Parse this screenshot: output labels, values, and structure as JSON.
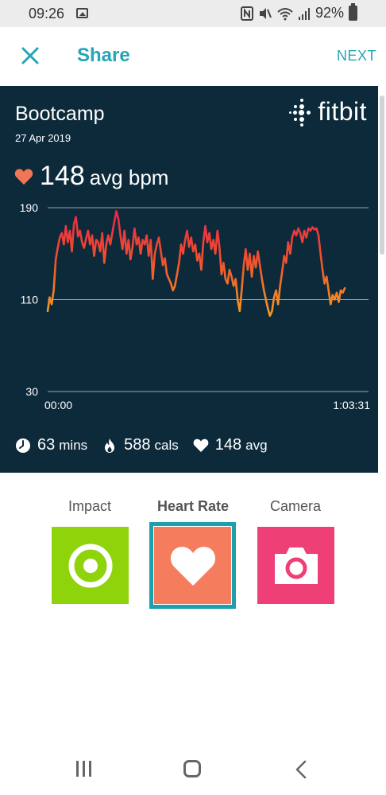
{
  "status_bar": {
    "time": "09:26",
    "battery": "92%"
  },
  "header": {
    "title": "Share",
    "next_label": "NEXT"
  },
  "card": {
    "workout_title": "Bootcamp",
    "date": "27 Apr 2019",
    "brand": "fitbit",
    "avg_bpm_value": "148",
    "avg_bpm_unit": "avg bpm",
    "stats": {
      "duration_value": "63",
      "duration_unit": "mins",
      "calories_value": "588",
      "calories_unit": "cals",
      "avg_value": "148",
      "avg_unit": "avg"
    },
    "colors": {
      "background": "#0d2a3b",
      "heart": "#f07658",
      "line_high": "#e8244a",
      "line_low": "#f5a623"
    }
  },
  "chart_data": {
    "type": "line",
    "y_ticks": [
      "190",
      "110",
      "30"
    ],
    "x_ticks": [
      "00:00",
      "1:03:31"
    ],
    "ylim": [
      30,
      190
    ],
    "xlim_minutes": [
      0,
      63.5
    ],
    "series": [
      {
        "values": [
          [
            0,
            100
          ],
          [
            0.4,
            112
          ],
          [
            0.8,
            106
          ],
          [
            1.2,
            118
          ],
          [
            1.6,
            145
          ],
          [
            2.0,
            155
          ],
          [
            2.4,
            164
          ],
          [
            2.8,
            168
          ],
          [
            3.2,
            158
          ],
          [
            3.6,
            174
          ],
          [
            4.0,
            160
          ],
          [
            4.4,
            170
          ],
          [
            4.8,
            152
          ],
          [
            5.2,
            176
          ],
          [
            5.6,
            182
          ],
          [
            6.0,
            165
          ],
          [
            6.4,
            170
          ],
          [
            6.8,
            160
          ],
          [
            7.2,
            155
          ],
          [
            7.6,
            163
          ],
          [
            8.0,
            170
          ],
          [
            8.4,
            158
          ],
          [
            8.8,
            166
          ],
          [
            9.2,
            148
          ],
          [
            9.6,
            162
          ],
          [
            10.0,
            160
          ],
          [
            10.4,
            152
          ],
          [
            10.8,
            168
          ],
          [
            11.2,
            142
          ],
          [
            11.6,
            158
          ],
          [
            12.0,
            166
          ],
          [
            12.4,
            158
          ],
          [
            12.8,
            168
          ],
          [
            13.2,
            178
          ],
          [
            13.6,
            187
          ],
          [
            14.0,
            180
          ],
          [
            14.4,
            166
          ],
          [
            14.8,
            154
          ],
          [
            15.2,
            170
          ],
          [
            15.6,
            150
          ],
          [
            16.0,
            162
          ],
          [
            16.4,
            145
          ],
          [
            16.8,
            156
          ],
          [
            17.2,
            172
          ],
          [
            17.6,
            158
          ],
          [
            18.0,
            164
          ],
          [
            18.4,
            150
          ],
          [
            18.8,
            162
          ],
          [
            19.2,
            158
          ],
          [
            19.6,
            166
          ],
          [
            20.0,
            148
          ],
          [
            20.4,
            162
          ],
          [
            20.8,
            128
          ],
          [
            21.2,
            150
          ],
          [
            21.6,
            158
          ],
          [
            22.0,
            164
          ],
          [
            22.4,
            152
          ],
          [
            22.8,
            140
          ],
          [
            23.2,
            146
          ],
          [
            23.6,
            132
          ],
          [
            24.0,
            128
          ],
          [
            24.4,
            124
          ],
          [
            24.8,
            118
          ],
          [
            25.2,
            122
          ],
          [
            25.6,
            132
          ],
          [
            26.0,
            142
          ],
          [
            26.4,
            158
          ],
          [
            26.8,
            150
          ],
          [
            27.2,
            162
          ],
          [
            27.6,
            170
          ],
          [
            28.0,
            156
          ],
          [
            28.4,
            164
          ],
          [
            28.8,
            152
          ],
          [
            29.2,
            158
          ],
          [
            29.6,
            144
          ],
          [
            30.0,
            150
          ],
          [
            30.4,
            136
          ],
          [
            30.8,
            160
          ],
          [
            31.2,
            174
          ],
          [
            31.6,
            160
          ],
          [
            32.0,
            168
          ],
          [
            32.4,
            154
          ],
          [
            32.8,
            162
          ],
          [
            33.2,
            150
          ],
          [
            33.6,
            170
          ],
          [
            34.0,
            156
          ],
          [
            34.4,
            132
          ],
          [
            34.8,
            142
          ],
          [
            35.2,
            128
          ],
          [
            35.6,
            124
          ],
          [
            36.0,
            136
          ],
          [
            36.4,
            130
          ],
          [
            36.8,
            122
          ],
          [
            37.2,
            128
          ],
          [
            37.6,
            110
          ],
          [
            38.0,
            100
          ],
          [
            38.4,
            118
          ],
          [
            38.8,
            140
          ],
          [
            39.2,
            154
          ],
          [
            39.6,
            136
          ],
          [
            40.0,
            150
          ],
          [
            40.4,
            130
          ],
          [
            40.8,
            148
          ],
          [
            41.2,
            138
          ],
          [
            41.6,
            152
          ],
          [
            42.0,
            140
          ],
          [
            42.4,
            128
          ],
          [
            42.8,
            118
          ],
          [
            43.2,
            110
          ],
          [
            43.6,
            102
          ],
          [
            44.0,
            96
          ],
          [
            44.4,
            100
          ],
          [
            44.8,
            112
          ],
          [
            45.2,
            118
          ],
          [
            45.6,
            106
          ],
          [
            46.0,
            122
          ],
          [
            46.4,
            134
          ],
          [
            46.8,
            148
          ],
          [
            47.2,
            142
          ],
          [
            47.6,
            160
          ],
          [
            48.0,
            150
          ],
          [
            48.4,
            164
          ],
          [
            48.8,
            170
          ],
          [
            49.2,
            166
          ],
          [
            49.6,
            172
          ],
          [
            50.0,
            168
          ],
          [
            50.4,
            160
          ],
          [
            50.8,
            170
          ],
          [
            51.2,
            164
          ],
          [
            51.6,
            172
          ],
          [
            52.0,
            170
          ],
          [
            52.4,
            173
          ],
          [
            52.8,
            171
          ],
          [
            53.2,
            172
          ],
          [
            53.6,
            166
          ],
          [
            54.0,
            150
          ],
          [
            54.4,
            136
          ],
          [
            54.8,
            124
          ],
          [
            55.2,
            130
          ],
          [
            55.6,
            118
          ],
          [
            56.0,
            106
          ],
          [
            56.4,
            114
          ],
          [
            56.8,
            110
          ],
          [
            57.2,
            116
          ],
          [
            57.6,
            108
          ],
          [
            58.0,
            118
          ],
          [
            58.4,
            116
          ],
          [
            58.8,
            120
          ]
        ]
      }
    ],
    "grid": "horizontal"
  },
  "picker": {
    "options": [
      {
        "label": "Impact",
        "color": "#8fd40a",
        "icon": "target-icon"
      },
      {
        "label": "Heart Rate",
        "color": "#f57c5c",
        "icon": "heart-icon"
      },
      {
        "label": "Camera",
        "color": "#ee3f77",
        "icon": "camera-icon"
      }
    ],
    "selected": "Heart Rate",
    "selected_border": "#1d9fae"
  }
}
